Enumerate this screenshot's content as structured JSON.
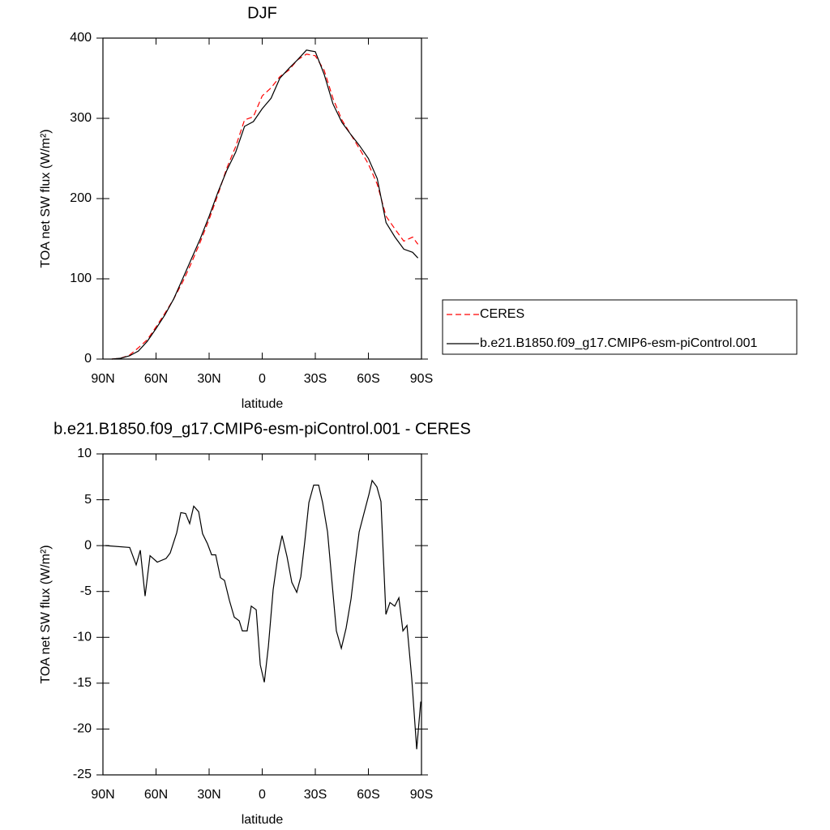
{
  "chart_data": [
    {
      "type": "line",
      "title": "DJF",
      "xlabel": "latitude",
      "ylabel": "TOA net SW flux (W/m²)",
      "x": [
        85,
        80,
        75,
        70,
        65,
        60,
        55,
        50,
        45,
        40,
        35,
        30,
        25,
        20,
        15,
        10,
        5,
        0,
        -5,
        -10,
        -15,
        -20,
        -25,
        -30,
        -35,
        -40,
        -45,
        -50,
        -55,
        -60,
        -65,
        -70,
        -75,
        -80,
        -85,
        -88
      ],
      "series": [
        {
          "name": "CERES",
          "color": "#ff0000",
          "dash": true,
          "values": [
            0,
            1,
            5,
            14,
            24,
            40,
            57,
            75,
            96,
            120,
            146,
            174,
            205,
            238,
            265,
            298,
            302,
            328,
            338,
            352,
            360,
            373,
            380,
            378,
            360,
            325,
            298,
            280,
            262,
            243,
            218,
            178,
            162,
            147,
            152,
            143
          ]
        },
        {
          "name": "b.e21.B1850.f09_g17.CMIP6-esm-piControl.001",
          "color": "#000000",
          "dash": false,
          "values": [
            0,
            1,
            4,
            10,
            22,
            38,
            55,
            75,
            100,
            125,
            150,
            178,
            208,
            235,
            258,
            290,
            296,
            312,
            325,
            350,
            362,
            373,
            385,
            383,
            355,
            318,
            295,
            280,
            266,
            250,
            225,
            170,
            152,
            137,
            133,
            126
          ]
        }
      ],
      "xlim": [
        90,
        -90
      ],
      "xticks": [
        {
          "value": 90,
          "label": "90N"
        },
        {
          "value": 60,
          "label": "60N"
        },
        {
          "value": 30,
          "label": "30N"
        },
        0,
        {
          "value": -30,
          "label": "30S"
        },
        {
          "value": -60,
          "label": "60S"
        },
        {
          "value": -90,
          "label": "90S"
        }
      ],
      "ylim": [
        0,
        400
      ],
      "yticks": [
        0,
        100,
        200,
        300,
        400
      ],
      "legend": "right"
    },
    {
      "type": "line",
      "title": "b.e21.B1850.f09_g17.CMIP6-esm-piControl.001 - CERES",
      "xlabel": "latitude",
      "ylabel": "TOA net SW flux (W/m²)",
      "x": [
        88.6,
        74.9,
        71.2,
        68.9,
        66.2,
        63.4,
        59.3,
        54.3,
        52,
        48.3,
        46,
        43.3,
        41,
        38.7,
        35.9,
        33.7,
        30.9,
        28.6,
        26.3,
        23.6,
        21.3,
        18.5,
        15.8,
        13,
        11.2,
        8.5,
        6.2,
        3.4,
        1.1,
        -1.2,
        -3.5,
        -6.2,
        -8.9,
        -11.2,
        -14,
        -16.7,
        -19.5,
        -21.8,
        -24.1,
        -26.4,
        -29.1,
        -31.9,
        -34.1,
        -36.9,
        -39.2,
        -41.9,
        -44.7,
        -47.4,
        -50.2,
        -52.5,
        -54.8,
        -57.5,
        -60.3,
        -62.1,
        -64.8,
        -67.1,
        -69.9,
        -72.2,
        -74.9,
        -77.2,
        -79.5,
        -81.8,
        -84.5,
        -87.3,
        -89.6
      ],
      "series": [
        {
          "color": "#000000",
          "dash": false,
          "values": [
            0,
            -0.2,
            -2.1,
            -0.5,
            -5.5,
            -1.1,
            -1.8,
            -1.4,
            -0.8,
            1.4,
            3.6,
            3.5,
            2.4,
            4.3,
            3.7,
            1.3,
            0.2,
            -1,
            -1,
            -3.5,
            -3.8,
            -6,
            -7.8,
            -8.2,
            -9.3,
            -9.3,
            -6.6,
            -7,
            -13,
            -14.9,
            -11,
            -4.8,
            -1.1,
            1.1,
            -1.2,
            -4,
            -5.1,
            -3.4,
            0.5,
            4.7,
            6.6,
            6.6,
            4.7,
            1.5,
            -3.5,
            -9.3,
            -11.2,
            -9,
            -5.8,
            -2,
            1.5,
            3.5,
            5.6,
            7.1,
            6.4,
            4.8,
            -7.5,
            -6.2,
            -6.6,
            -5.7,
            -9.3,
            -8.7,
            -14.5,
            -22.2,
            -17
          ]
        }
      ],
      "xlim": [
        90,
        -90
      ],
      "xticks": [
        {
          "value": 90,
          "label": "90N"
        },
        {
          "value": 60,
          "label": "60N"
        },
        {
          "value": 30,
          "label": "30N"
        },
        0,
        {
          "value": -30,
          "label": "30S"
        },
        {
          "value": -60,
          "label": "60S"
        },
        {
          "value": -90,
          "label": "90S"
        }
      ],
      "ylim": [
        -25,
        10
      ],
      "yticks": [
        -25,
        -20,
        -15,
        -10,
        -5,
        0,
        5,
        10
      ]
    }
  ]
}
